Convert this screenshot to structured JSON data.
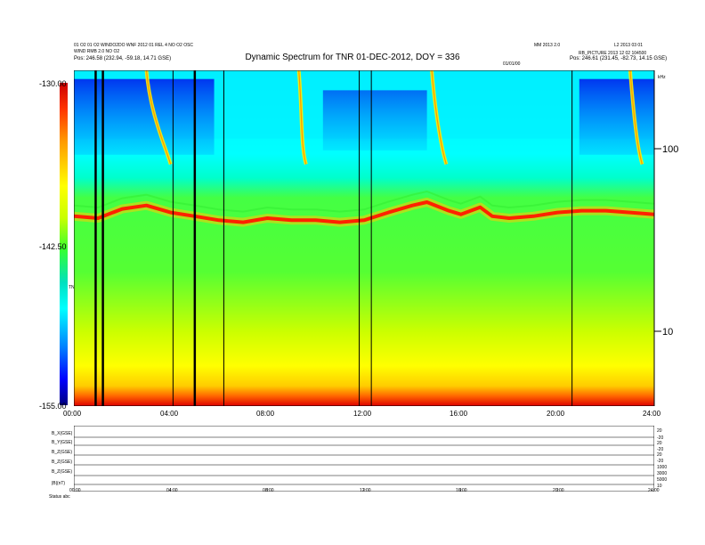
{
  "header": {
    "title": "Dynamic Spectrum for TNR 01-DEC-2012, DOY = 336",
    "left_line1": "01 O2 01 O2 WINDO2DO WNF 2012 01 REL 4 NO O2 OSC",
    "left_line2": "WIND RMB 2.0 NO O2",
    "left_pos": "Pos:     246.58 (232.94, -59.18, 14.71 GSE)",
    "right_line1": "MM 2013 2.0",
    "right_line2": "L2 2013 03 01",
    "right_line3": "RB_PICTURE 2013 12 02 104500",
    "right_pos": "Pos:     246.61 (231.45, -82.73, 14.15 GSE)",
    "mid_tag": "01/01/00"
  },
  "colorbar": {
    "ticks": [
      "-130.00",
      "-142.50",
      "-155.00"
    ],
    "label": "TNR"
  },
  "right_axis": {
    "ticks": [
      "100",
      "10"
    ],
    "unit_top": "kHz"
  },
  "x_axis": {
    "ticks": [
      "00:00",
      "04:00",
      "08:00",
      "12:00",
      "16:00",
      "20:00",
      "24:00"
    ]
  },
  "lower_panel": {
    "left_labels": [
      "B_X(GSE)",
      "B_Y(GSE)",
      "B_Z(GSE)",
      "B_Z(GSE)",
      "B_Z(GSE)",
      "|B|(nT)"
    ],
    "right_labels": [
      "20",
      "-20",
      "20",
      "-20",
      "20",
      "-20",
      "1000",
      "3000",
      "5000",
      "10"
    ],
    "time_ticks": [
      "00:00",
      "04:00",
      "08:00",
      "12:00",
      "16:00",
      "20:00",
      "24:00"
    ],
    "bottom_left": "Status   abc"
  },
  "colors": {
    "background_band_low": "#ffff00",
    "floor_band": "#ff3300",
    "plasma_line": "#ff2200",
    "mid_band": "#33ff33",
    "upper_band": "#00ffff",
    "burst": "#0033ff"
  },
  "chart_data": {
    "type": "heatmap",
    "title": "Dynamic Spectrum for TNR 01-DEC-2012, DOY = 336",
    "x_range_hours": [
      0,
      24
    ],
    "y_scale": "log",
    "y_unit": "kHz",
    "y_range_khz": [
      4,
      256
    ],
    "color_range_db": [
      -155.0,
      -130.0
    ],
    "plasma_line_khz": [
      [
        0,
        42
      ],
      [
        1,
        41
      ],
      [
        2,
        46
      ],
      [
        3,
        48
      ],
      [
        4,
        44
      ],
      [
        5,
        42
      ],
      [
        6,
        40
      ],
      [
        7,
        39
      ],
      [
        8,
        41
      ],
      [
        9,
        40
      ],
      [
        10,
        40
      ],
      [
        11,
        39
      ],
      [
        12,
        40
      ],
      [
        13,
        44
      ],
      [
        14,
        48
      ],
      [
        14.6,
        50
      ],
      [
        15.5,
        45
      ],
      [
        16,
        43
      ],
      [
        16.8,
        47
      ],
      [
        17.3,
        42
      ],
      [
        18,
        41
      ],
      [
        19,
        42
      ],
      [
        20,
        44
      ],
      [
        21,
        45
      ],
      [
        22,
        45
      ],
      [
        23,
        44
      ],
      [
        24,
        43
      ]
    ],
    "data_gaps_hours": [
      0.9,
      1.2,
      4.1,
      5.0,
      6.2,
      11.8,
      12.3,
      20.6
    ],
    "type_iii_bursts_hours": [
      [
        3.0,
        4.0
      ],
      [
        9.3,
        9.6
      ],
      [
        14.8,
        15.4
      ],
      [
        23.0,
        23.5
      ]
    ]
  }
}
